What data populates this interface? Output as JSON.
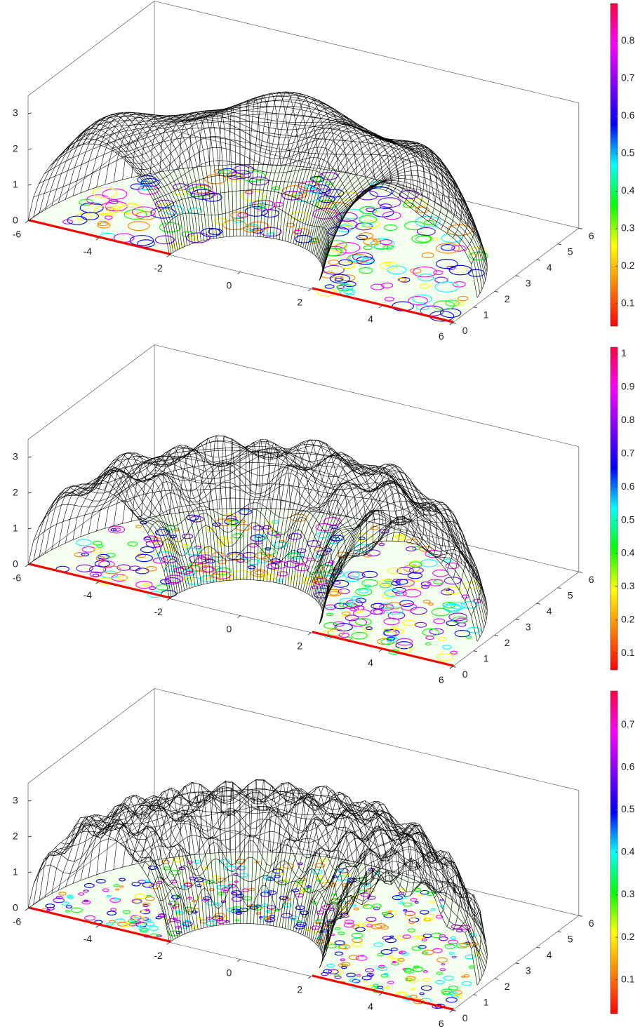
{
  "chart_data": [
    {
      "type": "surface",
      "xlim": [
        -6,
        6
      ],
      "ylim": [
        0,
        6
      ],
      "zlim": [
        0,
        3.5
      ],
      "xticks": [
        -6,
        -4,
        -2,
        0,
        2,
        4,
        6
      ],
      "yticks": [
        0,
        1,
        2,
        3,
        4,
        5,
        6
      ],
      "zticks": [
        0,
        1,
        2,
        3
      ],
      "colormap": [
        "#ff0000",
        "#ff8000",
        "#ffff00",
        "#00ff00",
        "#00ffff",
        "#0000ff",
        "#8000ff",
        "#ff00ff",
        "#ff0040"
      ],
      "colorbar": {
        "lim": [
          0.04,
          0.9
        ],
        "ticks": [
          0.1,
          0.2,
          0.3,
          0.4,
          0.5,
          0.6,
          0.7,
          0.8
        ]
      }
    },
    {
      "type": "surface",
      "xlim": [
        -6,
        6
      ],
      "ylim": [
        0,
        6
      ],
      "zlim": [
        0,
        3.5
      ],
      "xticks": [
        -6,
        -4,
        -2,
        0,
        2,
        4,
        6
      ],
      "yticks": [
        0,
        1,
        2,
        3,
        4,
        5,
        6
      ],
      "zticks": [
        0,
        1,
        2,
        3
      ],
      "colormap": [
        "#ff0000",
        "#ff8000",
        "#ffff00",
        "#00ff00",
        "#00ffff",
        "#0000ff",
        "#8000ff",
        "#ff00ff",
        "#ff0040"
      ],
      "colorbar": {
        "lim": [
          0.05,
          1.02
        ],
        "ticks": [
          0.1,
          0.2,
          0.3,
          0.4,
          0.5,
          0.6,
          0.7,
          0.8,
          0.9,
          1
        ]
      }
    },
    {
      "type": "surface",
      "xlim": [
        -6,
        6
      ],
      "ylim": [
        0,
        6
      ],
      "zlim": [
        0,
        3.5
      ],
      "xticks": [
        -6,
        -4,
        -2,
        0,
        2,
        4,
        6
      ],
      "yticks": [
        0,
        1,
        2,
        3,
        4,
        5,
        6
      ],
      "zticks": [
        0,
        1,
        2,
        3
      ],
      "colormap": [
        "#ff0000",
        "#ff8000",
        "#ffff00",
        "#00ff00",
        "#00ffff",
        "#0000ff",
        "#8000ff",
        "#ff00ff",
        "#ff0040"
      ],
      "colorbar": {
        "lim": [
          0.02,
          0.78
        ],
        "ticks": [
          0.1,
          0.2,
          0.3,
          0.4,
          0.5,
          0.6,
          0.7
        ]
      }
    }
  ]
}
